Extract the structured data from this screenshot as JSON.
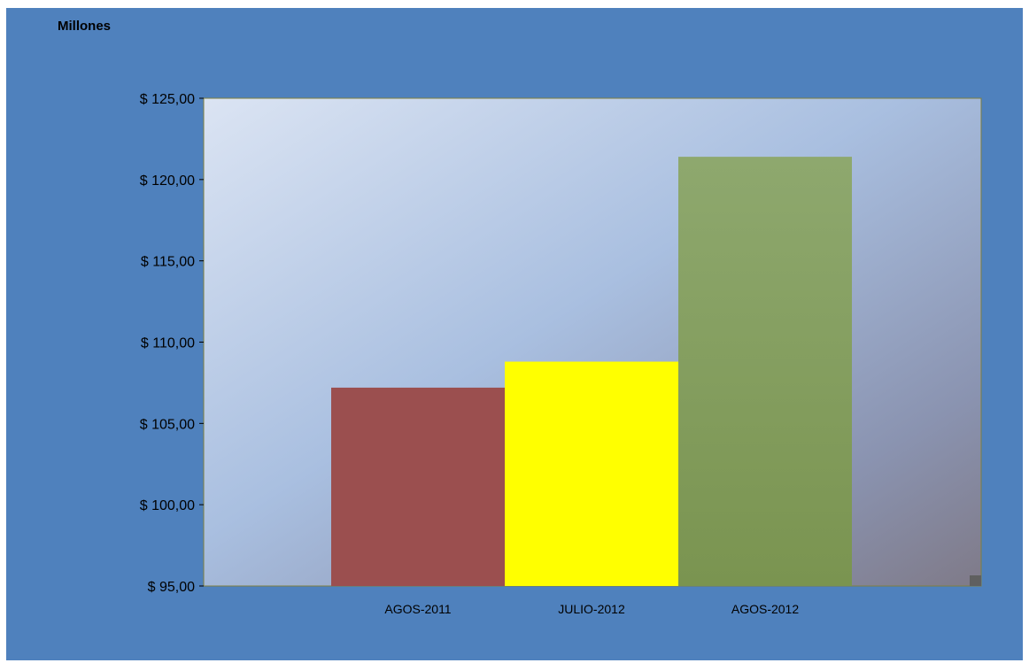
{
  "chart_data": {
    "type": "bar",
    "unit_label": "Millones",
    "categories": [
      "AGOS-2011",
      "JULIO-2012",
      "AGOS-2012"
    ],
    "values": [
      107.2,
      108.8,
      121.4
    ],
    "colors": [
      "#9b4f4f",
      "#ffff00",
      "#8aa66a"
    ],
    "ylim": [
      95,
      125
    ],
    "yticks": [
      95,
      100,
      105,
      110,
      115,
      120,
      125
    ],
    "ytick_labels": [
      "$ 95,00",
      "$ 100,00",
      "$ 105,00",
      "$ 110,00",
      "$ 115,00",
      "$ 120,00",
      "$ 125,00"
    ],
    "grid": false,
    "legend": "none"
  },
  "colors": {
    "background": "#4f81bd",
    "plot_border": "#7f7f3f"
  }
}
